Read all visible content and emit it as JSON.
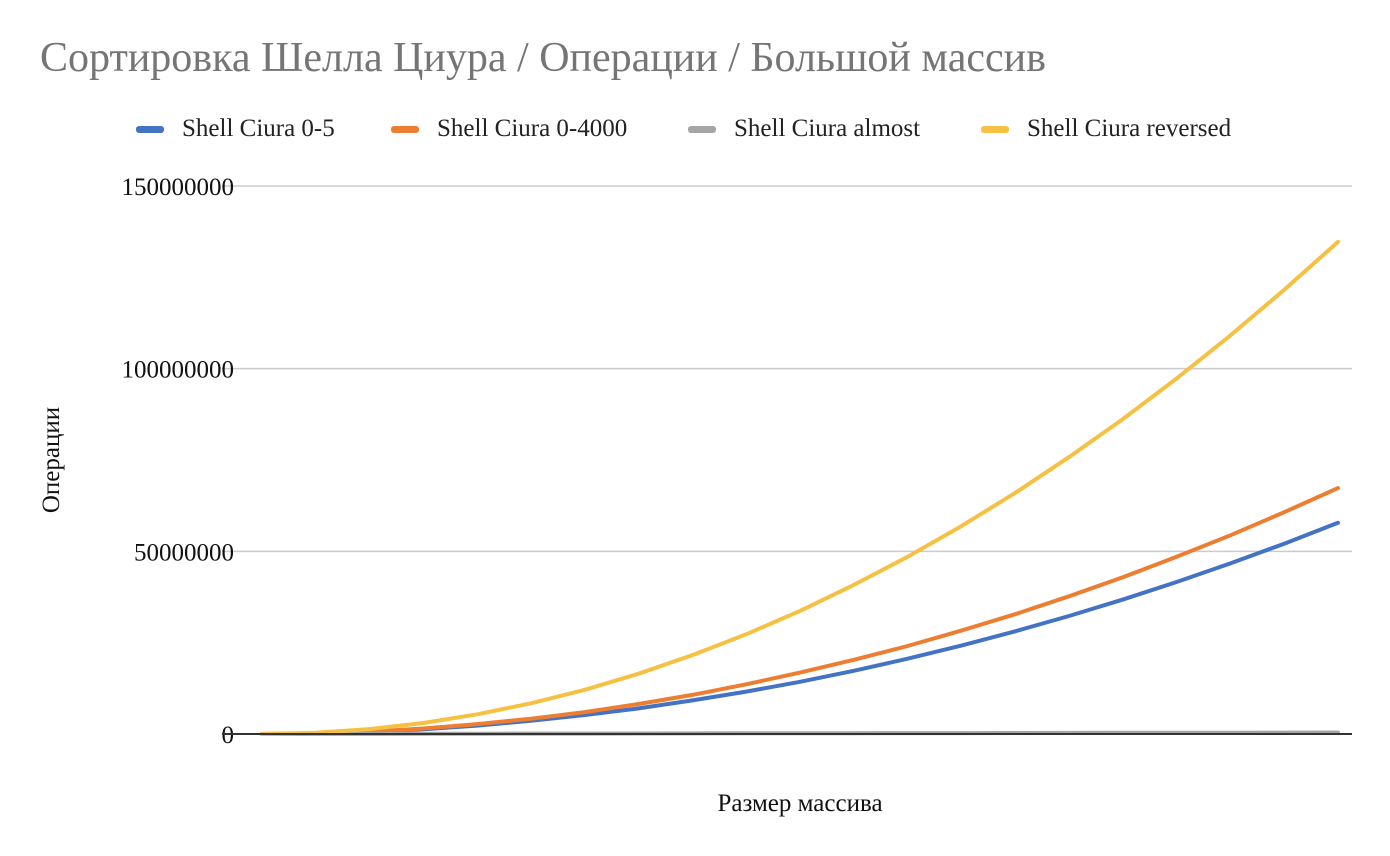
{
  "chart_data": {
    "type": "line",
    "title": "Сортировка Шелла Циура / Операции / Большой массив",
    "xlabel": "Размер массива",
    "ylabel": "Операции",
    "ylim": [
      0,
      150000000
    ],
    "yticks": [
      "0",
      "50000000",
      "100000000",
      "150000000"
    ],
    "grid": true,
    "legend_position": "top",
    "x": [
      0,
      0.05,
      0.1,
      0.15,
      0.2,
      0.25,
      0.3,
      0.35,
      0.4,
      0.45,
      0.5,
      0.55,
      0.6,
      0.65,
      0.7,
      0.75,
      0.8,
      0.85,
      0.9,
      0.95,
      1.0
    ],
    "series": [
      {
        "name": "Shell Ciura 0-5",
        "color": "#4472C4",
        "values": [
          0,
          140000,
          560000,
          1300000,
          2300000,
          3600000,
          5200000,
          7000000,
          9200000,
          11600000,
          14300000,
          17300000,
          20600000,
          24200000,
          28100000,
          32300000,
          36800000,
          41600000,
          46700000,
          52100000,
          57800000
        ]
      },
      {
        "name": "Shell Ciura 0-4000",
        "color": "#ED7D31",
        "values": [
          0,
          170000,
          670000,
          1500000,
          2700000,
          4200000,
          6000000,
          8200000,
          10700000,
          13600000,
          16800000,
          20300000,
          24100000,
          28300000,
          32800000,
          37700000,
          42900000,
          48500000,
          54400000,
          60700000,
          67300000
        ]
      },
      {
        "name": "Shell Ciura almost",
        "color": "#A5A5A5",
        "values": [
          0,
          20000,
          40000,
          60000,
          80000,
          100000,
          120000,
          140000,
          160000,
          180000,
          200000,
          220000,
          240000,
          260000,
          280000,
          300000,
          320000,
          340000,
          360000,
          380000,
          400000
        ]
      },
      {
        "name": "Shell Ciura reversed",
        "color": "#F6C142",
        "values": [
          0,
          340000,
          1350000,
          3000000,
          5400000,
          8400000,
          12100000,
          16500000,
          21600000,
          27300000,
          33700000,
          40800000,
          48500000,
          56900000,
          66000000,
          75800000,
          86200000,
          97300000,
          109100000,
          121600000,
          134700000
        ]
      }
    ]
  }
}
